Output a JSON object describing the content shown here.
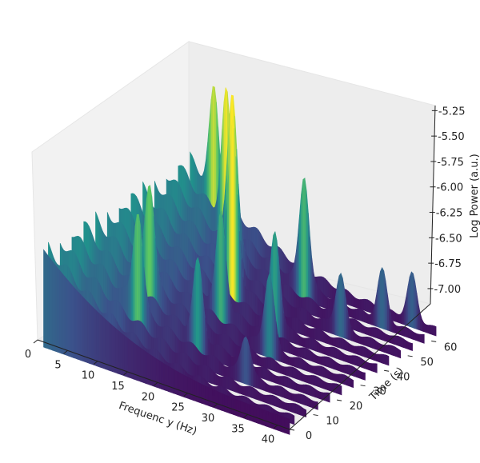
{
  "chart_data": {
    "type": "3d-surface",
    "title": "",
    "xlabel": "Frequenc y (Hz)",
    "ylabel": "Time (s)",
    "zlabel": "Log Power (a.u.)",
    "xlim": [
      0,
      42
    ],
    "ylim": [
      0,
      64
    ],
    "zlim": [
      -7.15,
      -5.2
    ],
    "x_ticks": [
      "0",
      "5",
      "10",
      "15",
      "20",
      "25",
      "30",
      "35",
      "40"
    ],
    "y_ticks": [
      "0",
      "10",
      "20",
      "30",
      "40",
      "50",
      "60"
    ],
    "z_ticks": [
      "-7.00",
      "-6.75",
      "-6.50",
      "-6.25",
      "-6.00",
      "-5.75",
      "-5.50",
      "-5.25"
    ],
    "colormap": "viridis",
    "colormap_colors": [
      "#440154",
      "#3b528b",
      "#21918c",
      "#5ec962",
      "#fde725"
    ],
    "grid": false,
    "pane_color": "#f2f2f2",
    "surface": {
      "time_slices": [
        2,
        7,
        12,
        17,
        22,
        27,
        32,
        37,
        42,
        47,
        52,
        57,
        62
      ],
      "frequency_range": [
        1,
        42
      ],
      "baseline_at_1hz": -6.25,
      "baseline_at_42hz": -7.05,
      "peaks": [
        {
          "f": 5,
          "t": 62,
          "z": -5.5
        },
        {
          "f": 9,
          "t": 57,
          "z": -5.35
        },
        {
          "f": 12,
          "t": 52,
          "z": -5.2
        },
        {
          "f": 14,
          "t": 47,
          "z": -5.55
        },
        {
          "f": 16,
          "t": 42,
          "z": -5.3
        },
        {
          "f": 10,
          "t": 22,
          "z": -5.7
        },
        {
          "f": 12,
          "t": 12,
          "z": -5.8
        },
        {
          "f": 18,
          "t": 32,
          "z": -6.0
        },
        {
          "f": 22,
          "t": 57,
          "z": -5.9
        },
        {
          "f": 25,
          "t": 37,
          "z": -6.1
        },
        {
          "f": 28,
          "t": 27,
          "z": -6.3
        },
        {
          "f": 32,
          "t": 47,
          "z": -6.5
        },
        {
          "f": 35,
          "t": 57,
          "z": -6.55
        },
        {
          "f": 38,
          "t": 62,
          "z": -6.6
        },
        {
          "f": 20,
          "t": 17,
          "z": -6.2
        },
        {
          "f": 30,
          "t": 12,
          "z": -6.65
        }
      ]
    }
  }
}
